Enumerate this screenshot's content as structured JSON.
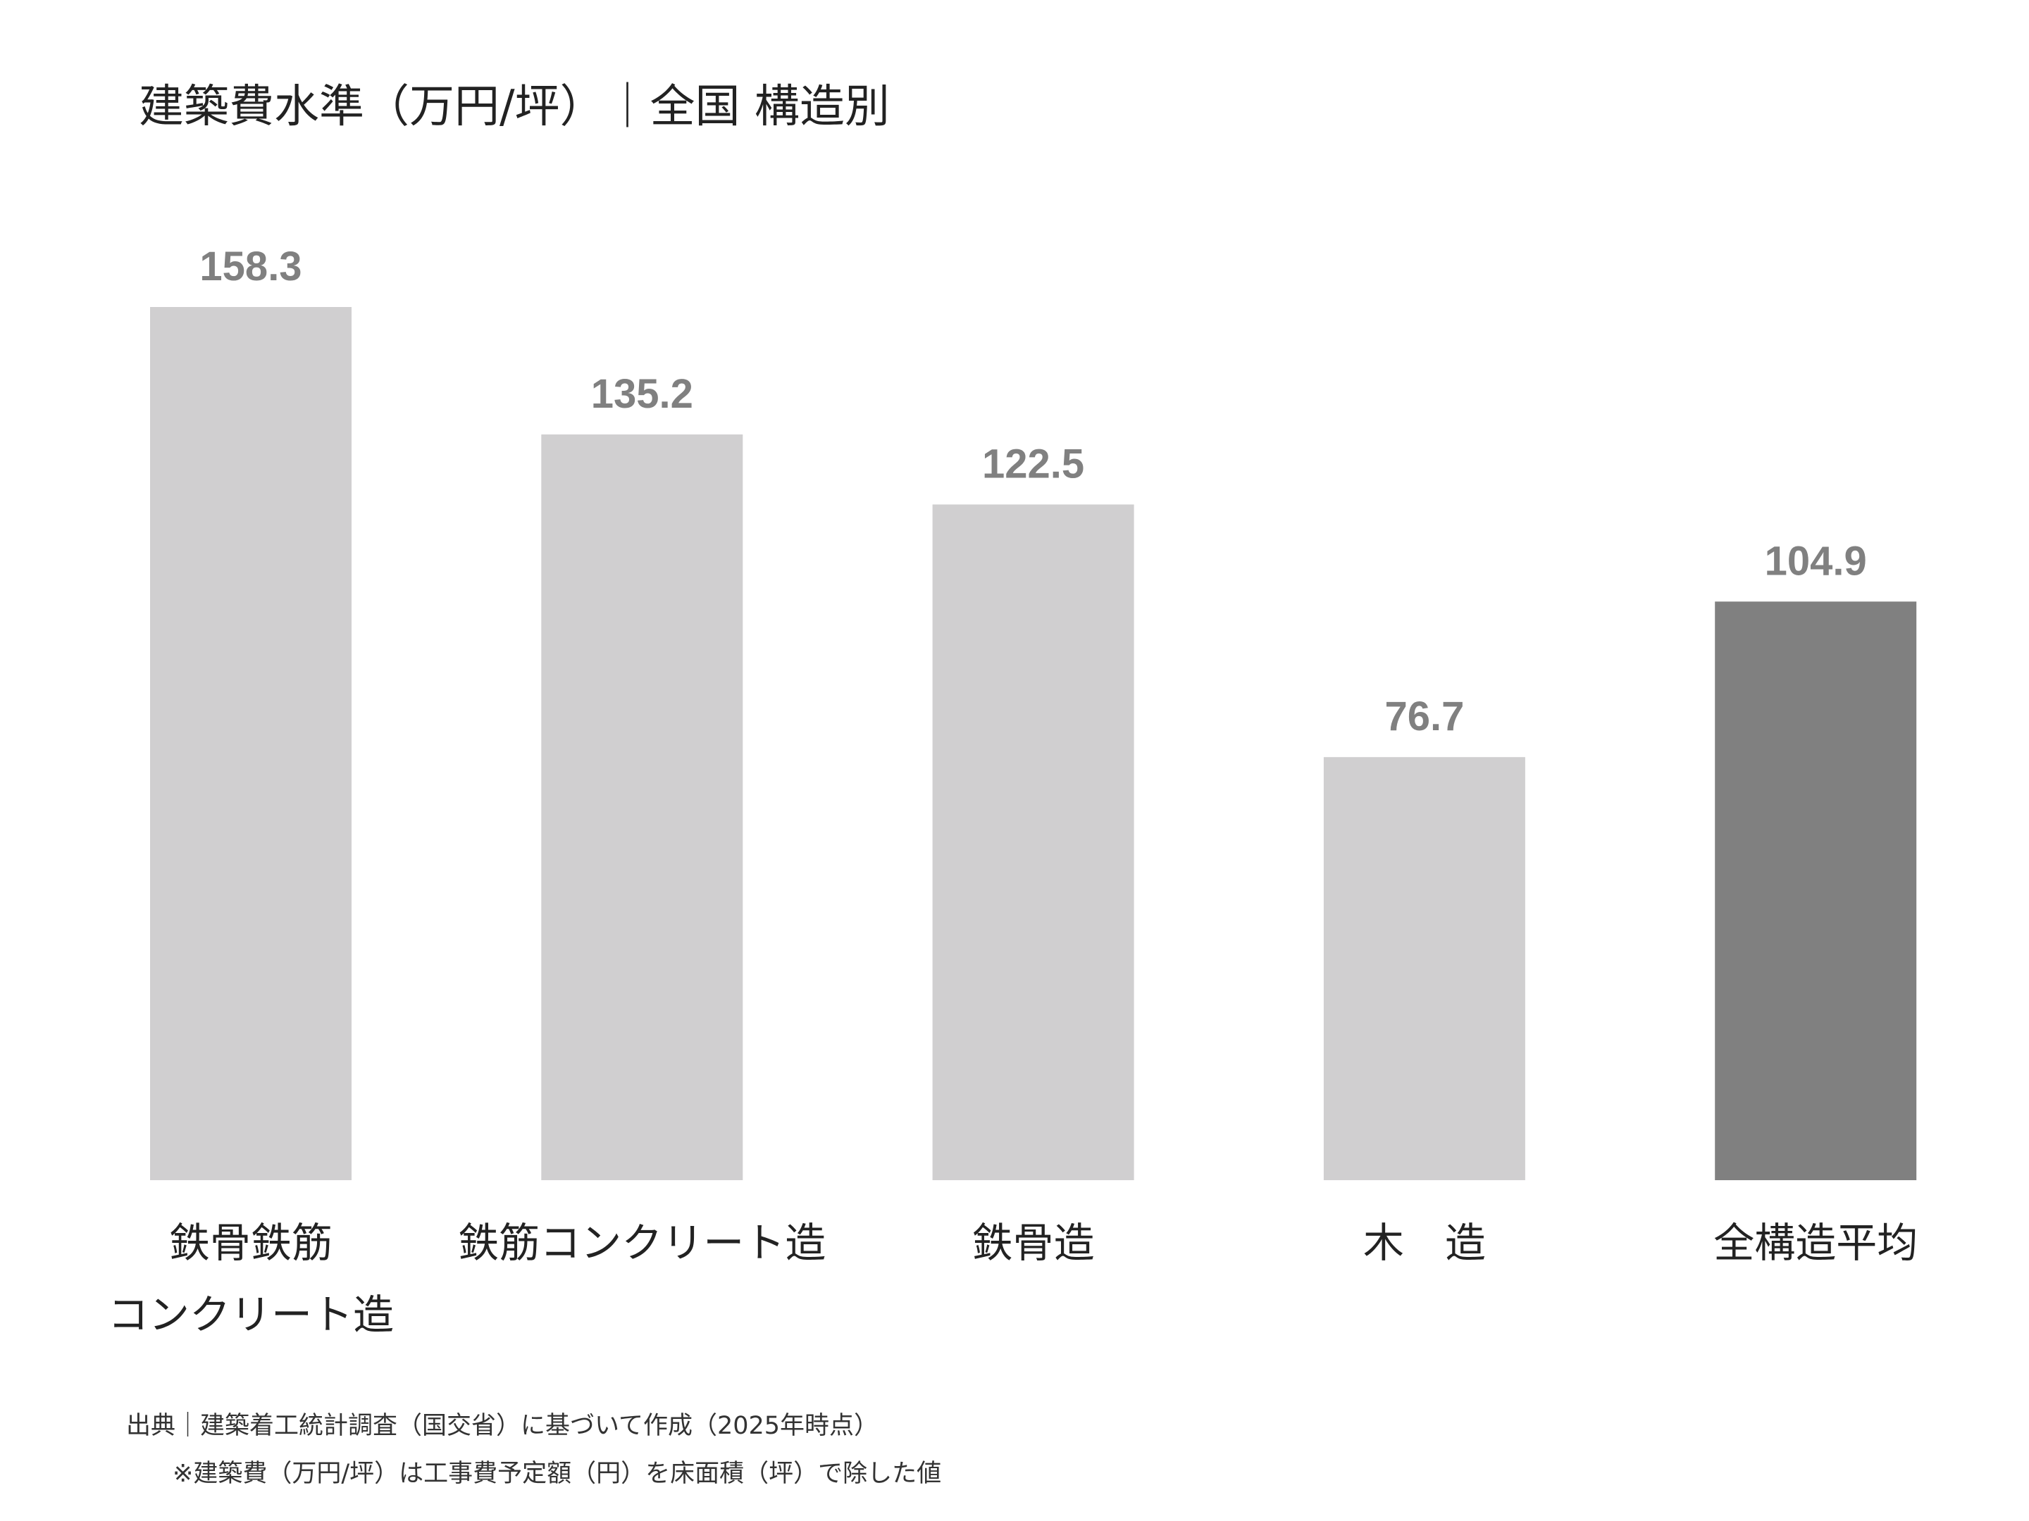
{
  "title": "建築費水準（万円/坪）｜全国 構造別",
  "chart_data": {
    "type": "bar",
    "title": "建築費水準（万円/坪）｜全国 構造別",
    "categories": [
      [
        "鉄骨鉄筋",
        "コンクリート造"
      ],
      [
        "鉄筋コンクリート造"
      ],
      [
        "鉄骨造"
      ],
      [
        "木　造"
      ],
      [
        "全構造平均"
      ]
    ],
    "values": [
      158.3,
      135.2,
      122.5,
      76.7,
      104.9
    ],
    "value_labels": [
      "158.3",
      "135.2",
      "122.5",
      "76.7",
      "104.9"
    ],
    "bar_colors": [
      "#d0cfd0",
      "#d0cfd0",
      "#d0cfd0",
      "#d0cfd0",
      "#808080"
    ],
    "value_label_color": "#808080",
    "ylim": [
      0,
      158.3
    ],
    "grid": false,
    "y_axis_shown": false
  },
  "footer": {
    "source": "出典｜建築着工統計調査（国交省）に基づいて作成（2025年時点）",
    "note": "※建築費（万円/坪）は工事費予定額（円）を床面積（坪）で除した値"
  }
}
